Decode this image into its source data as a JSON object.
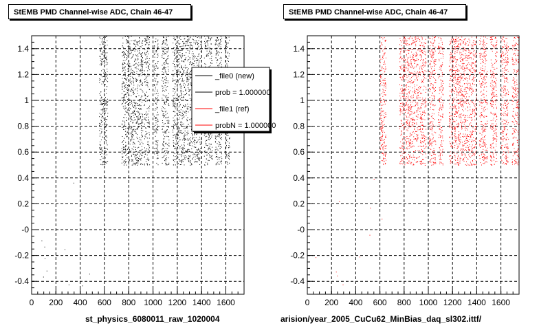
{
  "panels": [
    {
      "title": "StEMB PMD Channel-wise ADC, Chain 46-47",
      "caption": "st_physics_6080011_raw_1020004",
      "color": "#000000",
      "legend": [
        {
          "label": "_file0 (new)",
          "color": "#000000"
        },
        {
          "label": "prob = 1.000000",
          "color": "#000000"
        },
        {
          "label": "_file1 (ref)",
          "color": "#ff0000"
        },
        {
          "label": "probN = 1.000000",
          "color": "#ff0000"
        }
      ]
    },
    {
      "title": "StEMB PMD Channel-wise ADC, Chain 46-47",
      "caption": "arision/year_2005_CuCu62_MinBias_daq_sl302.ittf/",
      "color": "#ff0000"
    }
  ],
  "chart_data": [
    {
      "type": "scatter",
      "title": "StEMB PMD Channel-wise ADC, Chain 46-47",
      "xlabel": "st_physics_6080011_raw_1020004",
      "ylabel": "",
      "xlim": [
        0,
        1750
      ],
      "ylim": [
        -0.5,
        1.5
      ],
      "xticks": [
        0,
        200,
        400,
        600,
        800,
        1000,
        1200,
        1400,
        1600
      ],
      "yticks": [
        -0.4,
        -0.2,
        0,
        0.2,
        0.4,
        0.6,
        0.8,
        1,
        1.2,
        1.4
      ],
      "ytick_labels": [
        "-0.4",
        "-0.2",
        "-0",
        "0.2",
        "0.4",
        "0.6",
        "0.8",
        "1",
        "1.2",
        "1.4"
      ],
      "grid": true,
      "dense_bands": [
        [
          555,
          625
        ],
        [
          740,
          915
        ],
        [
          925,
          970
        ],
        [
          1005,
          1040
        ],
        [
          1070,
          1130
        ],
        [
          1160,
          1395
        ],
        [
          1420,
          1485
        ],
        [
          1510,
          1565
        ],
        [
          1590,
          1630
        ]
      ],
      "band_y_range": [
        0.5,
        1.5
      ],
      "series": [
        {
          "name": "_file0 (new)",
          "color": "#000000"
        }
      ]
    },
    {
      "type": "scatter",
      "title": "StEMB PMD Channel-wise ADC, Chain 46-47",
      "xlabel": "arision/year_2005_CuCu62_MinBias_daq_sl302.ittf/",
      "ylabel": "",
      "xlim": [
        0,
        1750
      ],
      "ylim": [
        -0.5,
        1.5
      ],
      "xticks": [
        0,
        200,
        400,
        600,
        800,
        1000,
        1200,
        1400,
        1600
      ],
      "yticks": [
        -0.4,
        -0.2,
        0,
        0.2,
        0.4,
        0.6,
        0.8,
        1,
        1.2,
        1.4
      ],
      "ytick_labels": [
        "-0.4",
        "-0.2",
        "-0",
        "0.2",
        "0.4",
        "0.6",
        "0.8",
        "1",
        "1.2",
        "1.4"
      ],
      "grid": true,
      "dense_bands": [
        [
          600,
          650
        ],
        [
          760,
          915
        ],
        [
          925,
          980
        ],
        [
          1005,
          1060
        ],
        [
          1080,
          1120
        ],
        [
          1170,
          1395
        ],
        [
          1420,
          1485
        ],
        [
          1510,
          1565
        ],
        [
          1600,
          1660
        ],
        [
          1690,
          1750
        ]
      ],
      "band_y_range": [
        0.5,
        1.5
      ],
      "series": [
        {
          "name": "_file1 (ref)",
          "color": "#ff0000"
        }
      ]
    }
  ]
}
